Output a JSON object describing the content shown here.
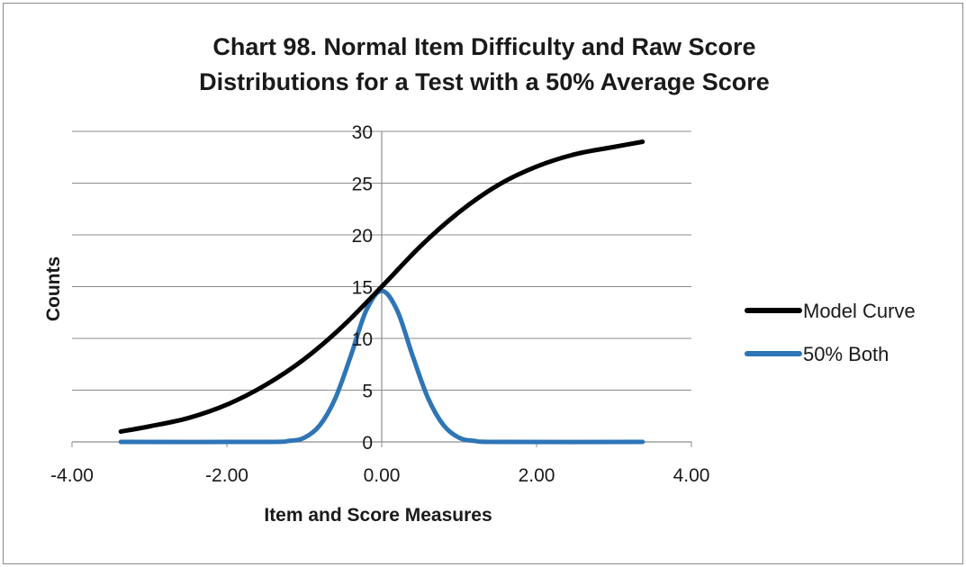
{
  "chart_data": {
    "type": "line",
    "title_lines": [
      "Chart 98. Normal Item Difficulty and Raw Score",
      "Distributions for a Test with a 50% Average Score"
    ],
    "xlabel": "Item and Score Measures",
    "ylabel": "Counts",
    "xlim": [
      -4,
      4
    ],
    "ylim": [
      0,
      30
    ],
    "x_ticks": [
      -4,
      -2,
      0,
      2,
      4
    ],
    "x_tick_labels": [
      "-4.00",
      "-2.00",
      "0.00",
      "2.00",
      "4.00"
    ],
    "y_ticks": [
      0,
      5,
      10,
      15,
      20,
      25,
      30
    ],
    "y_tick_labels": [
      "0",
      "5",
      "10",
      "15",
      "20",
      "25",
      "30"
    ],
    "grid": "horizontal",
    "legend_position": "right",
    "series": [
      {
        "name": "Model Curve",
        "color": "#000000",
        "points": [
          [
            -3.37,
            1.0
          ],
          [
            -3.0,
            1.5
          ],
          [
            -2.5,
            2.3
          ],
          [
            -2.0,
            3.6
          ],
          [
            -1.5,
            5.5
          ],
          [
            -1.0,
            8.0
          ],
          [
            -0.5,
            11.2
          ],
          [
            0.0,
            15.0
          ],
          [
            0.5,
            18.9
          ],
          [
            1.0,
            22.2
          ],
          [
            1.5,
            24.8
          ],
          [
            2.0,
            26.6
          ],
          [
            2.5,
            27.8
          ],
          [
            3.0,
            28.5
          ],
          [
            3.37,
            29.0
          ]
        ]
      },
      {
        "name": "50% Both",
        "color": "#2e75b6",
        "points": [
          [
            -3.37,
            0.0
          ],
          [
            -1.5,
            0.0
          ],
          [
            -1.2,
            0.1
          ],
          [
            -1.0,
            0.4
          ],
          [
            -0.8,
            1.6
          ],
          [
            -0.6,
            4.2
          ],
          [
            -0.4,
            8.3
          ],
          [
            -0.2,
            12.7
          ],
          [
            0.0,
            14.6
          ],
          [
            0.2,
            12.7
          ],
          [
            0.4,
            8.3
          ],
          [
            0.6,
            4.2
          ],
          [
            0.8,
            1.6
          ],
          [
            1.0,
            0.4
          ],
          [
            1.2,
            0.1
          ],
          [
            1.5,
            0.0
          ],
          [
            3.37,
            0.0
          ]
        ]
      }
    ]
  }
}
